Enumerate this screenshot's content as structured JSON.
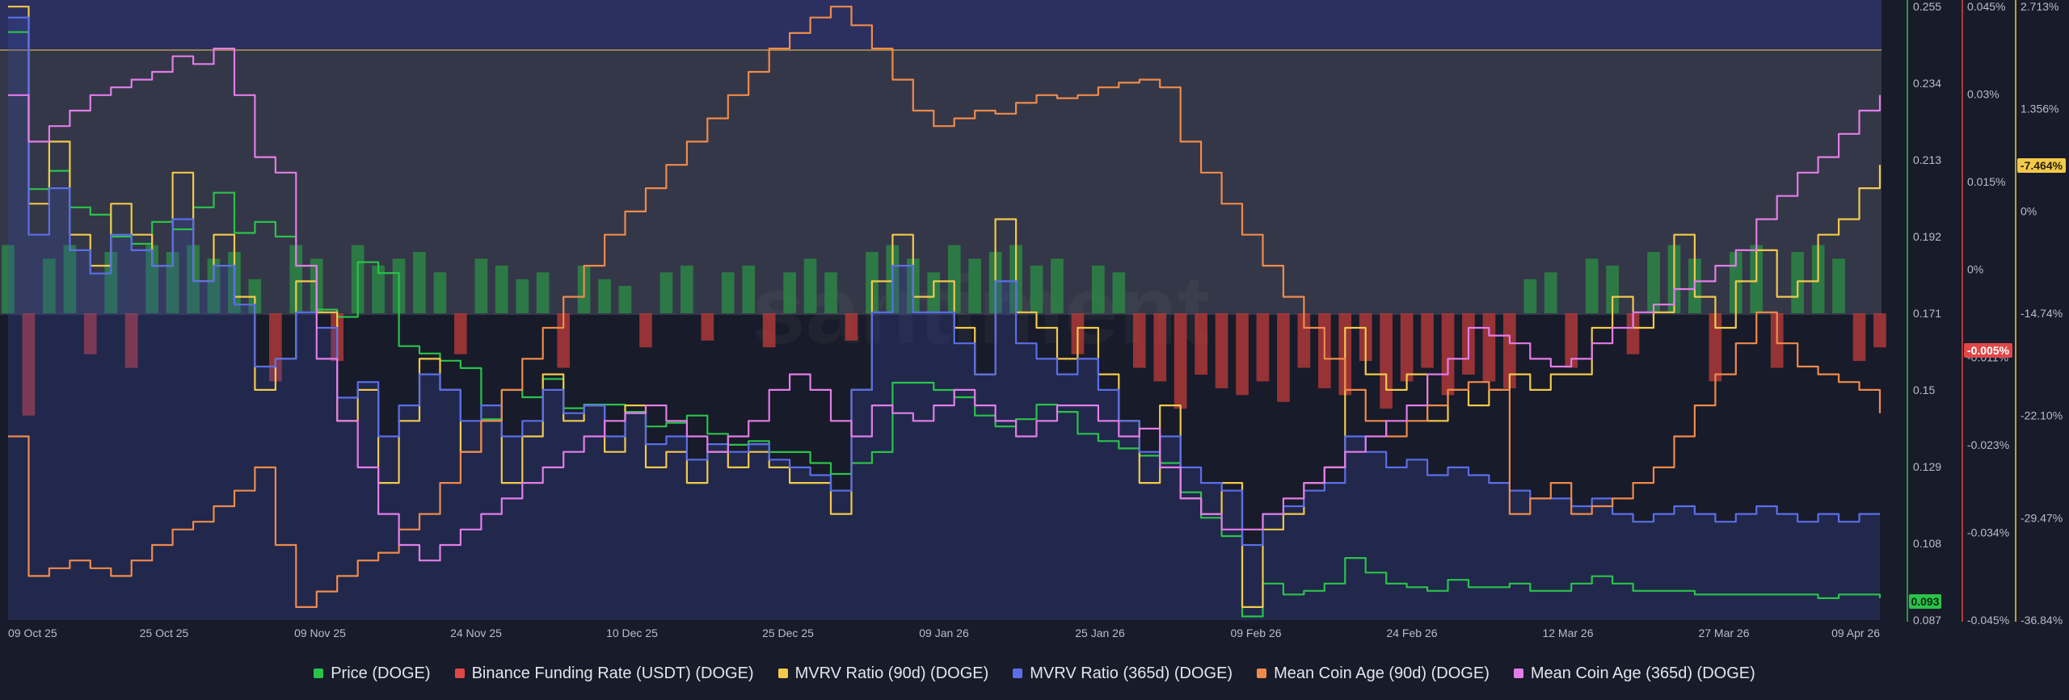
{
  "legend": [
    {
      "label": "Price (DOGE)",
      "color": "#2bc24a"
    },
    {
      "label": "Binance Funding Rate (USDT) (DOGE)",
      "color": "#e04848"
    },
    {
      "label": "MVRV Ratio (90d) (DOGE)",
      "color": "#f2c94c"
    },
    {
      "label": "MVRV Ratio (365d) (DOGE)",
      "color": "#5b6ee8"
    },
    {
      "label": "Mean Coin Age (90d) (DOGE)",
      "color": "#f08a4b"
    },
    {
      "label": "Mean Coin Age (365d) (DOGE)",
      "color": "#e27de8"
    }
  ],
  "badges": {
    "price": "0.093",
    "funding": "-0.005%",
    "mvrv": "-7.464%"
  },
  "watermark": "santiment",
  "chart_data": {
    "type": "line",
    "x_labels": [
      "09 Oct 25",
      "25 Oct 25",
      "09 Nov 25",
      "24 Nov 25",
      "10 Dec 25",
      "25 Dec 25",
      "09 Jan 26",
      "25 Jan 26",
      "09 Feb 26",
      "24 Feb 26",
      "12 Mar 26",
      "27 Mar 26",
      "09 Apr 26"
    ],
    "axes": {
      "price": {
        "ticks": [
          "0.255",
          "0.234",
          "0.213",
          "0.192",
          "0.171",
          "0.15",
          "0.129",
          "0.108",
          "0.087"
        ],
        "range": [
          0.087,
          0.255
        ],
        "color": "#2bc24a"
      },
      "funding": {
        "ticks": [
          "0.045%",
          "0.03%",
          "0.015%",
          "0%",
          "-0.011%",
          "-0.023%",
          "-0.034%",
          "-0.045%"
        ],
        "range": [
          -0.045,
          0.045
        ],
        "color": "#e04848"
      },
      "mvrv": {
        "ticks": [
          "2.713%",
          "1.356%",
          "0%",
          "-14.74%",
          "-22.10%",
          "-29.47%",
          "-36.84%"
        ],
        "range": [
          -36.84,
          2.713
        ],
        "color": "#f2c94c"
      }
    },
    "series": [
      {
        "name": "Price (DOGE)",
        "axis": "price",
        "color": "#2bc24a",
        "x": [
          0,
          2,
          4,
          6,
          8,
          10,
          12,
          14,
          16,
          18,
          20,
          22,
          24,
          26,
          28,
          30,
          32,
          34,
          36,
          38,
          40,
          42,
          44,
          46,
          48,
          50,
          52,
          54,
          56,
          58,
          60,
          62,
          64,
          66,
          68,
          70,
          72,
          74,
          76,
          78,
          80,
          82,
          84,
          86,
          88,
          90,
          92,
          94,
          96,
          98,
          100,
          102,
          104,
          106,
          108,
          110,
          112,
          114,
          116,
          118,
          120,
          122,
          124,
          126,
          128,
          130,
          132,
          134,
          136,
          138,
          140,
          142,
          144,
          146,
          148,
          150,
          152,
          154,
          156,
          158,
          160,
          162,
          164,
          166,
          168,
          170,
          172,
          174,
          176,
          178,
          180,
          182
        ],
        "values": [
          0.248,
          0.205,
          0.21,
          0.2,
          0.198,
          0.192,
          0.19,
          0.196,
          0.194,
          0.2,
          0.204,
          0.193,
          0.196,
          0.192,
          0.184,
          0.172,
          0.17,
          0.185,
          0.182,
          0.162,
          0.16,
          0.158,
          0.156,
          0.142,
          0.15,
          0.148,
          0.153,
          0.145,
          0.146,
          0.146,
          0.144,
          0.14,
          0.141,
          0.143,
          0.138,
          0.135,
          0.136,
          0.133,
          0.133,
          0.13,
          0.127,
          0.13,
          0.133,
          0.152,
          0.152,
          0.15,
          0.148,
          0.143,
          0.14,
          0.142,
          0.146,
          0.144,
          0.138,
          0.136,
          0.134,
          0.132,
          0.13,
          0.122,
          0.115,
          0.11,
          0.088,
          0.097,
          0.094,
          0.095,
          0.097,
          0.104,
          0.1,
          0.097,
          0.096,
          0.095,
          0.098,
          0.096,
          0.096,
          0.097,
          0.095,
          0.095,
          0.097,
          0.099,
          0.097,
          0.095,
          0.095,
          0.095,
          0.094,
          0.094,
          0.094,
          0.094,
          0.094,
          0.094,
          0.093,
          0.094,
          0.094,
          0.093
        ]
      },
      {
        "name": "MVRV Ratio (90d) (DOGE)",
        "axis": "mvrv",
        "color": "#f2c94c",
        "x": [
          0,
          2,
          4,
          6,
          8,
          10,
          12,
          14,
          16,
          18,
          20,
          22,
          24,
          26,
          28,
          30,
          32,
          34,
          36,
          38,
          40,
          42,
          44,
          46,
          48,
          50,
          52,
          54,
          56,
          58,
          60,
          62,
          64,
          66,
          68,
          70,
          72,
          74,
          76,
          78,
          80,
          82,
          84,
          86,
          88,
          90,
          92,
          94,
          96,
          98,
          100,
          102,
          104,
          106,
          108,
          110,
          112,
          114,
          116,
          118,
          120,
          122,
          124,
          126,
          128,
          130,
          132,
          134,
          136,
          138,
          140,
          142,
          144,
          146,
          148,
          150,
          152,
          154,
          156,
          158,
          160,
          162,
          164,
          166,
          168,
          170,
          172,
          174,
          176,
          178,
          180,
          182
        ],
        "values": [
          2.7,
          -10.0,
          -6.0,
          -12.0,
          -14.0,
          -10.0,
          -12.0,
          -14.0,
          -8.0,
          -15.0,
          -12.0,
          -16.0,
          -22.0,
          -20.0,
          -15.0,
          -17.0,
          -24.0,
          -22.0,
          -28.0,
          -24.0,
          -20.0,
          -22.0,
          -26.0,
          -24.0,
          -28.0,
          -25.0,
          -21.0,
          -24.0,
          -23.0,
          -26.0,
          -23.0,
          -27.0,
          -26.0,
          -28.0,
          -26.0,
          -27.0,
          -26.0,
          -27.0,
          -28.0,
          -28.0,
          -30.0,
          -22.0,
          -15.0,
          -12.0,
          -16.0,
          -15.0,
          -18.0,
          -21.0,
          -11.0,
          -17.0,
          -18.0,
          -20.0,
          -18.0,
          -21.0,
          -24.0,
          -28.0,
          -23.0,
          -29.0,
          -30.0,
          -28.0,
          -36.0,
          -31.0,
          -30.0,
          -28.0,
          -27.0,
          -18.0,
          -21.0,
          -22.0,
          -21.0,
          -24.0,
          -22.0,
          -23.0,
          -22.0,
          -21.0,
          -22.0,
          -21.0,
          -21.0,
          -18.0,
          -16.0,
          -18.0,
          -17.0,
          -12.0,
          -16.0,
          -18.0,
          -15.0,
          -13.0,
          -16.0,
          -15.0,
          -12.0,
          -11.0,
          -9.0,
          -7.5
        ]
      },
      {
        "name": "MVRV Ratio (365d) (DOGE)",
        "axis": "mvrv",
        "color": "#5b6ee8",
        "x": [
          0,
          2,
          4,
          6,
          8,
          10,
          12,
          14,
          16,
          18,
          20,
          22,
          24,
          26,
          28,
          30,
          32,
          34,
          36,
          38,
          40,
          42,
          44,
          46,
          48,
          50,
          52,
          54,
          56,
          58,
          60,
          62,
          64,
          66,
          68,
          70,
          72,
          74,
          76,
          78,
          80,
          82,
          84,
          86,
          88,
          90,
          92,
          94,
          96,
          98,
          100,
          102,
          104,
          106,
          108,
          110,
          112,
          114,
          116,
          118,
          120,
          122,
          124,
          126,
          128,
          130,
          132,
          134,
          136,
          138,
          140,
          142,
          144,
          146,
          148,
          150,
          152,
          154,
          156,
          158,
          160,
          162,
          164,
          166,
          168,
          170,
          172,
          174,
          176,
          178,
          180,
          182
        ],
        "values": [
          2.0,
          -12.0,
          -9.0,
          -13.0,
          -14.5,
          -12.0,
          -13.0,
          -14.0,
          -11.0,
          -15.0,
          -14.0,
          -16.5,
          -20.5,
          -20.0,
          -17.0,
          -18.0,
          -22.5,
          -21.5,
          -25.0,
          -23.0,
          -21.0,
          -22.0,
          -24.0,
          -23.0,
          -25.0,
          -24.0,
          -22.0,
          -23.5,
          -23.0,
          -25.0,
          -23.5,
          -25.5,
          -25.0,
          -26.5,
          -25.5,
          -26.0,
          -25.5,
          -26.5,
          -27.0,
          -27.5,
          -28.5,
          -22.0,
          -17.0,
          -14.0,
          -17.0,
          -17.0,
          -19.0,
          -21.0,
          -15.0,
          -19.0,
          -20.0,
          -21.0,
          -20.0,
          -22.0,
          -24.0,
          -26.0,
          -25.0,
          -27.0,
          -28.0,
          -28.5,
          -32.0,
          -30.0,
          -29.5,
          -28.5,
          -28.0,
          -25.0,
          -26.0,
          -27.0,
          -26.5,
          -27.5,
          -27.0,
          -27.5,
          -28.0,
          -28.5,
          -29.0,
          -29.0,
          -29.5,
          -29.0,
          -30.0,
          -30.5,
          -30.0,
          -29.5,
          -30.0,
          -30.5,
          -30.0,
          -29.5,
          -30.0,
          -30.5,
          -30.0,
          -30.5,
          -30.0,
          -30.0
        ]
      },
      {
        "name": "Mean Coin Age (90d) (DOGE)",
        "axis": "mvrv",
        "color": "#f08a4b",
        "x": [
          0,
          2,
          4,
          6,
          8,
          10,
          12,
          14,
          16,
          18,
          20,
          22,
          24,
          26,
          28,
          30,
          32,
          34,
          36,
          38,
          40,
          42,
          44,
          46,
          48,
          50,
          52,
          54,
          56,
          58,
          60,
          62,
          64,
          66,
          68,
          70,
          72,
          74,
          76,
          78,
          80,
          82,
          84,
          86,
          88,
          90,
          92,
          94,
          96,
          98,
          100,
          102,
          104,
          106,
          108,
          110,
          112,
          114,
          116,
          118,
          120,
          122,
          124,
          126,
          128,
          130,
          132,
          134,
          136,
          138,
          140,
          142,
          144,
          146,
          148,
          150,
          152,
          154,
          156,
          158,
          160,
          162,
          164,
          166,
          168,
          170,
          172,
          174,
          176,
          178,
          180,
          182
        ],
        "values": [
          -25.0,
          -34.0,
          -33.5,
          -33.0,
          -33.5,
          -34.0,
          -33.0,
          -32.0,
          -31.0,
          -30.5,
          -29.5,
          -28.5,
          -27.0,
          -32.0,
          -36.0,
          -35.0,
          -34.0,
          -33.0,
          -32.5,
          -31.0,
          -30.0,
          -28.0,
          -26.0,
          -24.0,
          -22.0,
          -20.0,
          -18.0,
          -16.0,
          -14.0,
          -12.0,
          -10.5,
          -9.0,
          -7.5,
          -6.0,
          -4.5,
          -3.0,
          -1.5,
          0.0,
          1.0,
          2.0,
          2.7,
          1.5,
          0.0,
          -2.0,
          -4.0,
          -5.0,
          -4.5,
          -4.0,
          -4.2,
          -3.5,
          -3.0,
          -3.2,
          -3.0,
          -2.5,
          -2.2,
          -2.0,
          -2.5,
          -6.0,
          -8.0,
          -10.0,
          -12.0,
          -14.0,
          -16.0,
          -18.0,
          -20.0,
          -22.0,
          -24.0,
          -25.0,
          -24.0,
          -23.0,
          -22.0,
          -21.5,
          -22.0,
          -30.0,
          -29.0,
          -28.0,
          -30.0,
          -29.5,
          -29.0,
          -28.0,
          -27.0,
          -25.0,
          -23.0,
          -21.0,
          -19.0,
          -17.0,
          -19.0,
          -20.5,
          -21.0,
          -21.5,
          -22.0,
          -23.5
        ]
      },
      {
        "name": "Mean Coin Age (365d) (DOGE)",
        "axis": "mvrv",
        "color": "#e27de8",
        "x": [
          0,
          2,
          4,
          6,
          8,
          10,
          12,
          14,
          16,
          18,
          20,
          22,
          24,
          26,
          28,
          30,
          32,
          34,
          36,
          38,
          40,
          42,
          44,
          46,
          48,
          50,
          52,
          54,
          56,
          58,
          60,
          62,
          64,
          66,
          68,
          70,
          72,
          74,
          76,
          78,
          80,
          82,
          84,
          86,
          88,
          90,
          92,
          94,
          96,
          98,
          100,
          102,
          104,
          106,
          108,
          110,
          112,
          114,
          116,
          118,
          120,
          122,
          124,
          126,
          128,
          130,
          132,
          134,
          136,
          138,
          140,
          142,
          144,
          146,
          148,
          150,
          152,
          154,
          156,
          158,
          160,
          162,
          164,
          166,
          168,
          170,
          172,
          174,
          176,
          178,
          180,
          182
        ],
        "values": [
          -3.0,
          -6.0,
          -5.0,
          -4.0,
          -3.0,
          -2.5,
          -2.0,
          -1.5,
          -0.5,
          -1.0,
          0.0,
          -3.0,
          -7.0,
          -8.0,
          -14.0,
          -20.0,
          -24.0,
          -27.0,
          -30.0,
          -32.0,
          -33.0,
          -32.0,
          -31.0,
          -30.0,
          -29.0,
          -28.0,
          -27.0,
          -26.0,
          -25.0,
          -24.0,
          -23.5,
          -23.0,
          -24.0,
          -25.0,
          -26.0,
          -25.0,
          -24.0,
          -22.0,
          -21.0,
          -22.0,
          -24.0,
          -25.0,
          -23.0,
          -23.5,
          -24.0,
          -23.0,
          -22.0,
          -23.0,
          -24.0,
          -25.0,
          -24.0,
          -23.0,
          -23.0,
          -24.0,
          -25.0,
          -24.5,
          -27.0,
          -29.0,
          -30.0,
          -31.0,
          -31.0,
          -30.0,
          -29.0,
          -28.0,
          -27.0,
          -26.0,
          -25.0,
          -24.0,
          -23.0,
          -21.0,
          -20.0,
          -18.0,
          -18.5,
          -19.0,
          -20.0,
          -20.5,
          -20.0,
          -19.0,
          -18.0,
          -17.0,
          -16.5,
          -15.5,
          -15.0,
          -14.0,
          -13.0,
          -11.0,
          -9.5,
          -8.0,
          -7.0,
          -5.5,
          -4.0,
          -3.0
        ]
      }
    ],
    "funding_rate": {
      "name": "Binance Funding Rate (USDT) (DOGE)",
      "type": "bar",
      "axis": "funding",
      "x": [
        0,
        2,
        4,
        6,
        8,
        10,
        12,
        14,
        16,
        18,
        20,
        22,
        24,
        26,
        28,
        30,
        32,
        34,
        36,
        38,
        40,
        42,
        44,
        46,
        48,
        50,
        52,
        54,
        56,
        58,
        60,
        62,
        64,
        66,
        68,
        70,
        72,
        74,
        76,
        78,
        80,
        82,
        84,
        86,
        88,
        90,
        92,
        94,
        96,
        98,
        100,
        102,
        104,
        106,
        108,
        110,
        112,
        114,
        116,
        118,
        120,
        122,
        124,
        126,
        128,
        130,
        132,
        134,
        136,
        138,
        140,
        142,
        144,
        146,
        148,
        150,
        152,
        154,
        156,
        158,
        160,
        162,
        164,
        166,
        168,
        170,
        172,
        174,
        176,
        178,
        180,
        182
      ],
      "values": [
        0.01,
        -0.015,
        0.008,
        0.01,
        -0.006,
        0.009,
        -0.008,
        0.01,
        0.009,
        0.01,
        0.008,
        0.009,
        0.005,
        -0.01,
        0.01,
        0.008,
        -0.007,
        0.01,
        0.007,
        0.008,
        0.009,
        0.006,
        -0.006,
        0.008,
        0.007,
        0.005,
        0.006,
        -0.008,
        0.007,
        0.005,
        0.004,
        -0.005,
        0.006,
        0.007,
        -0.004,
        0.006,
        0.007,
        -0.005,
        0.006,
        0.008,
        0.006,
        -0.004,
        0.009,
        0.01,
        0.008,
        0.006,
        0.01,
        0.008,
        0.009,
        0.01,
        0.007,
        0.008,
        -0.006,
        0.007,
        0.006,
        -0.008,
        -0.01,
        -0.014,
        -0.009,
        -0.011,
        -0.012,
        -0.01,
        -0.013,
        -0.008,
        -0.011,
        -0.012,
        -0.007,
        -0.014,
        -0.01,
        -0.008,
        -0.012,
        -0.009,
        -0.01,
        -0.011,
        0.005,
        0.006,
        -0.008,
        0.008,
        0.007,
        -0.006,
        0.009,
        0.01,
        0.008,
        -0.01,
        0.009,
        0.01,
        -0.008,
        0.009,
        0.01,
        0.008,
        -0.007,
        -0.005
      ]
    }
  }
}
